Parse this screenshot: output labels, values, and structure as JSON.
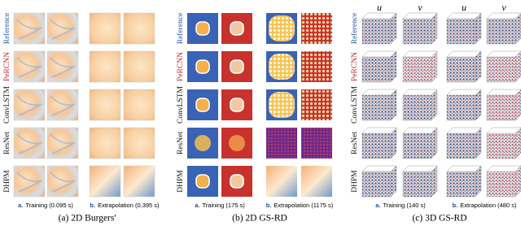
{
  "panels": [
    {
      "row_labels": [
        "Reference",
        "PeRCNN",
        "ConvLSTM",
        "ResNet",
        "DHPM"
      ],
      "sub_captions": [
        {
          "letter": "a.",
          "text": "Training (0.095 s)"
        },
        {
          "letter": "b.",
          "text": "Extrapolation (0.395 s)"
        }
      ],
      "caption": "(a) 2D Burgers'"
    },
    {
      "row_labels": [
        "Reference",
        "PeRCNN",
        "ConvLSTM",
        "ResNet",
        "DHPM"
      ],
      "sub_captions": [
        {
          "letter": "a.",
          "text": "Training (175 s)"
        },
        {
          "letter": "b.",
          "text": "Extrapolation (1175 s)"
        }
      ],
      "caption": "(b) 2D GS-RD"
    },
    {
      "column_labels": [
        "u",
        "v",
        "u",
        "v"
      ],
      "row_labels": [
        "Reference",
        "PeRCNN",
        "ConvLSTM",
        "ResNet",
        "DHPM"
      ],
      "sub_captions": [
        {
          "letter": "a.",
          "text": "Training (140 s)"
        },
        {
          "letter": "b.",
          "text": "Extrapolation (480 s)"
        }
      ],
      "caption": "(c) 3D GS-RD"
    }
  ]
}
